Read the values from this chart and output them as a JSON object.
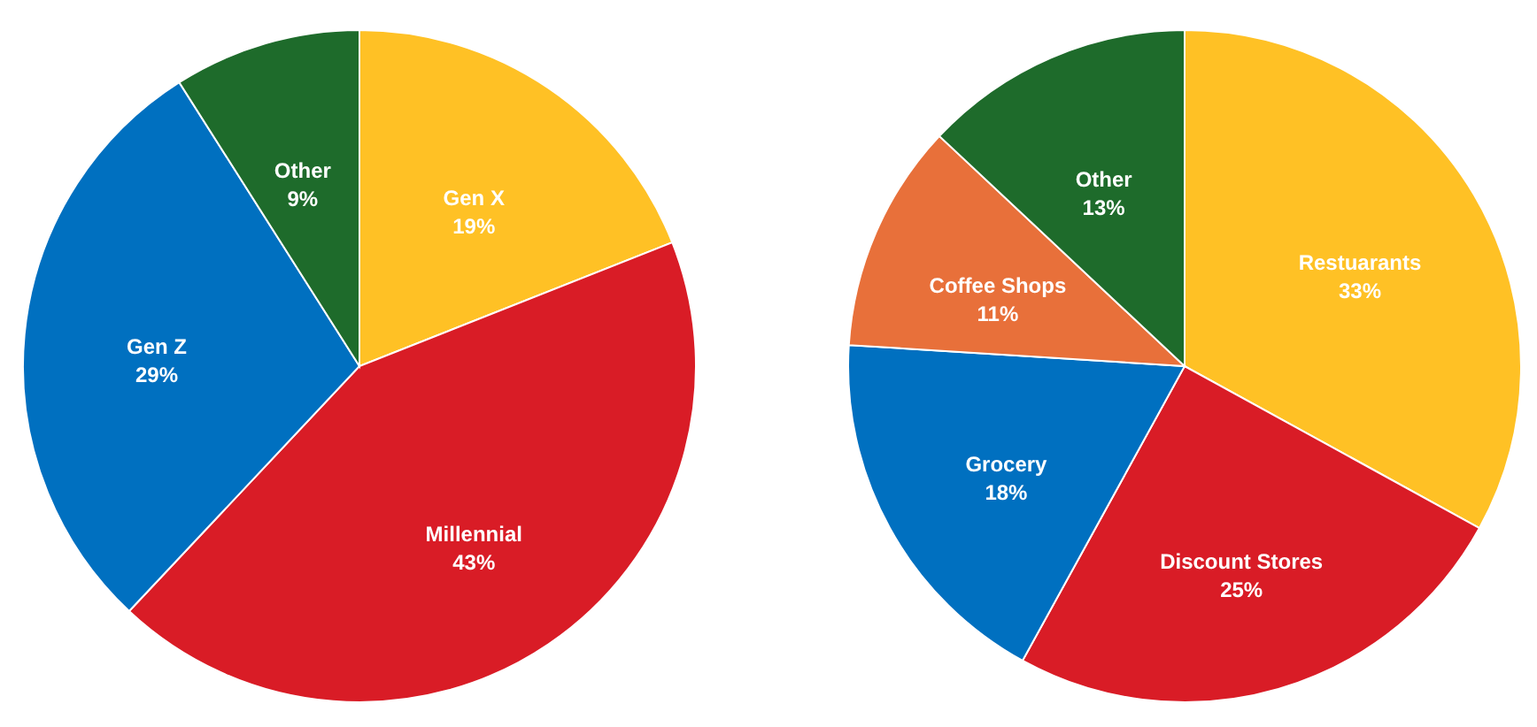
{
  "chart_data": [
    {
      "type": "pie",
      "categories": [
        "Gen X",
        "Millennial",
        "Gen Z",
        "Other"
      ],
      "values": [
        19,
        43,
        29,
        9
      ],
      "value_labels": [
        "19%",
        "43%",
        "29%",
        "9%"
      ],
      "colors": [
        "#ffc125",
        "#d91c26",
        "#0070c0",
        "#1e6b2b"
      ]
    },
    {
      "type": "pie",
      "categories": [
        "Restuarants",
        "Discount Stores",
        "Grocery",
        "Coffee Shops",
        "Other"
      ],
      "values": [
        33,
        25,
        18,
        11,
        13
      ],
      "value_labels": [
        "33%",
        "25%",
        "18%",
        "11%",
        "13%"
      ],
      "colors": [
        "#ffc125",
        "#d91c26",
        "#0070c0",
        "#e8703a",
        "#1e6b2b"
      ]
    }
  ]
}
